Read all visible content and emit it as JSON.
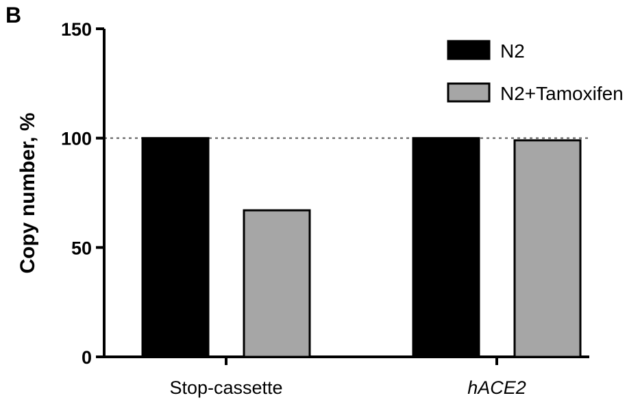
{
  "panel_label": "B",
  "chart_data": {
    "type": "bar",
    "categories": [
      "Stop-cassette",
      "hACE2"
    ],
    "category_italic": [
      false,
      true
    ],
    "series": [
      {
        "name": "N2",
        "values": [
          100,
          100
        ],
        "color": "#000000"
      },
      {
        "name": "N2+Tamoxifen",
        "values": [
          67,
          99
        ],
        "color": "#a6a6a6"
      }
    ],
    "ylabel": "Copy number, %",
    "xlabel": "",
    "ylim": [
      0,
      150
    ],
    "yticks": [
      0,
      50,
      100,
      150
    ],
    "reference_line": {
      "y": 100,
      "style": "dashed"
    },
    "legend_position": "top-right",
    "grid": false
  }
}
